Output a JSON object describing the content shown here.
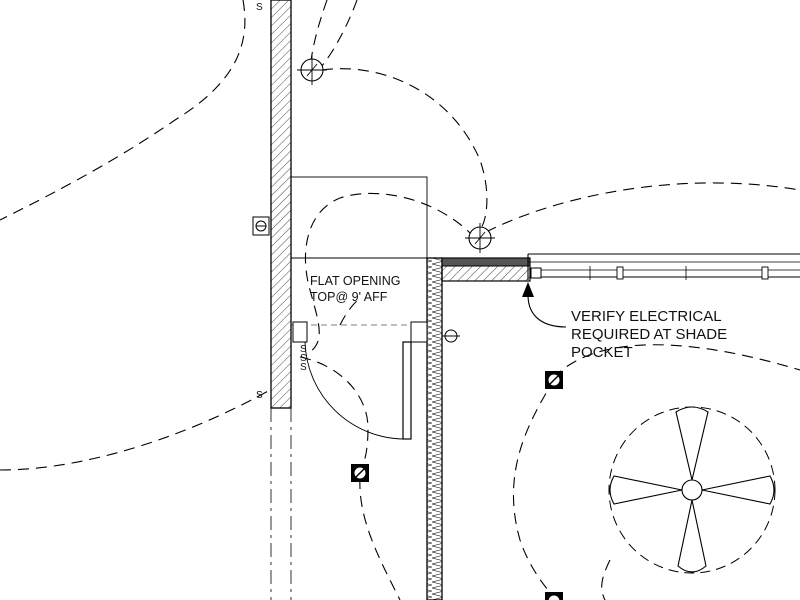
{
  "notes": {
    "opening_line1": "FLAT OPENING",
    "opening_line2": "TOP@ 9' AFF",
    "verify_line1": "VERIFY ELECTRICAL",
    "verify_line2": "REQUIRED AT SHADE",
    "verify_line3": "POCKET"
  },
  "switch_marks": {
    "s_top": "S",
    "s_bottom": "S",
    "s_group_1": "S",
    "s_group_2": "S",
    "s_group_3": "S"
  },
  "colors": {
    "ink": "#000000",
    "paper": "#ffffff",
    "shade_pocket": "#555555"
  }
}
